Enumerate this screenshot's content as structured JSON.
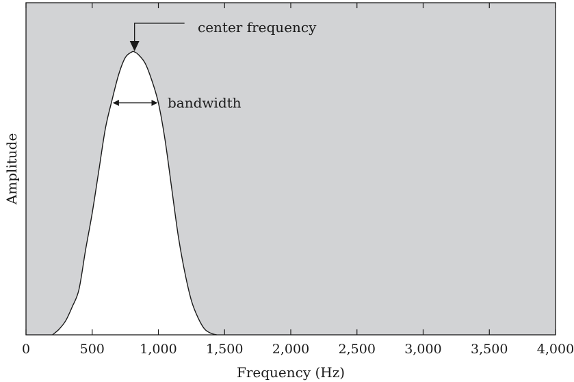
{
  "chart_data": {
    "type": "area",
    "title": "",
    "xlabel": "Frequency (Hz)",
    "ylabel": "Amplitude",
    "xlim": [
      0,
      4000
    ],
    "ylim": [
      0,
      1
    ],
    "x_ticks": [
      0,
      500,
      1000,
      1500,
      2000,
      2500,
      3000,
      3500,
      4000
    ],
    "x_tick_labels": [
      "0",
      "500",
      "1,000",
      "1,500",
      "2,000",
      "2,500",
      "3,000",
      "3,500",
      "4,000"
    ],
    "y_ticks_visible": false,
    "grid": false,
    "legend": "none",
    "series": [
      {
        "x": [
          200,
          250,
          300,
          350,
          400,
          450,
          500,
          550,
          600,
          650,
          700,
          750,
          800,
          820,
          850,
          900,
          950,
          1000,
          1050,
          1100,
          1150,
          1200,
          1250,
          1300,
          1350,
          1400,
          1440
        ],
        "y": [
          0.0,
          0.02,
          0.05,
          0.1,
          0.16,
          0.3,
          0.43,
          0.58,
          0.73,
          0.83,
          0.92,
          0.98,
          1.0,
          1.0,
          0.99,
          0.96,
          0.9,
          0.82,
          0.69,
          0.52,
          0.35,
          0.22,
          0.12,
          0.06,
          0.02,
          0.005,
          0.0
        ]
      }
    ],
    "annotations": [
      {
        "text": "center frequency",
        "x": 820,
        "y": 1.0
      },
      {
        "text": "bandwidth",
        "x_from": 650,
        "x_to": 1000,
        "y": 0.82
      }
    ],
    "colors": {
      "plot_background": "#d2d3d5",
      "fill": "#ffffff",
      "line": "#1a1a1a",
      "text": "#1a1a1a"
    }
  }
}
